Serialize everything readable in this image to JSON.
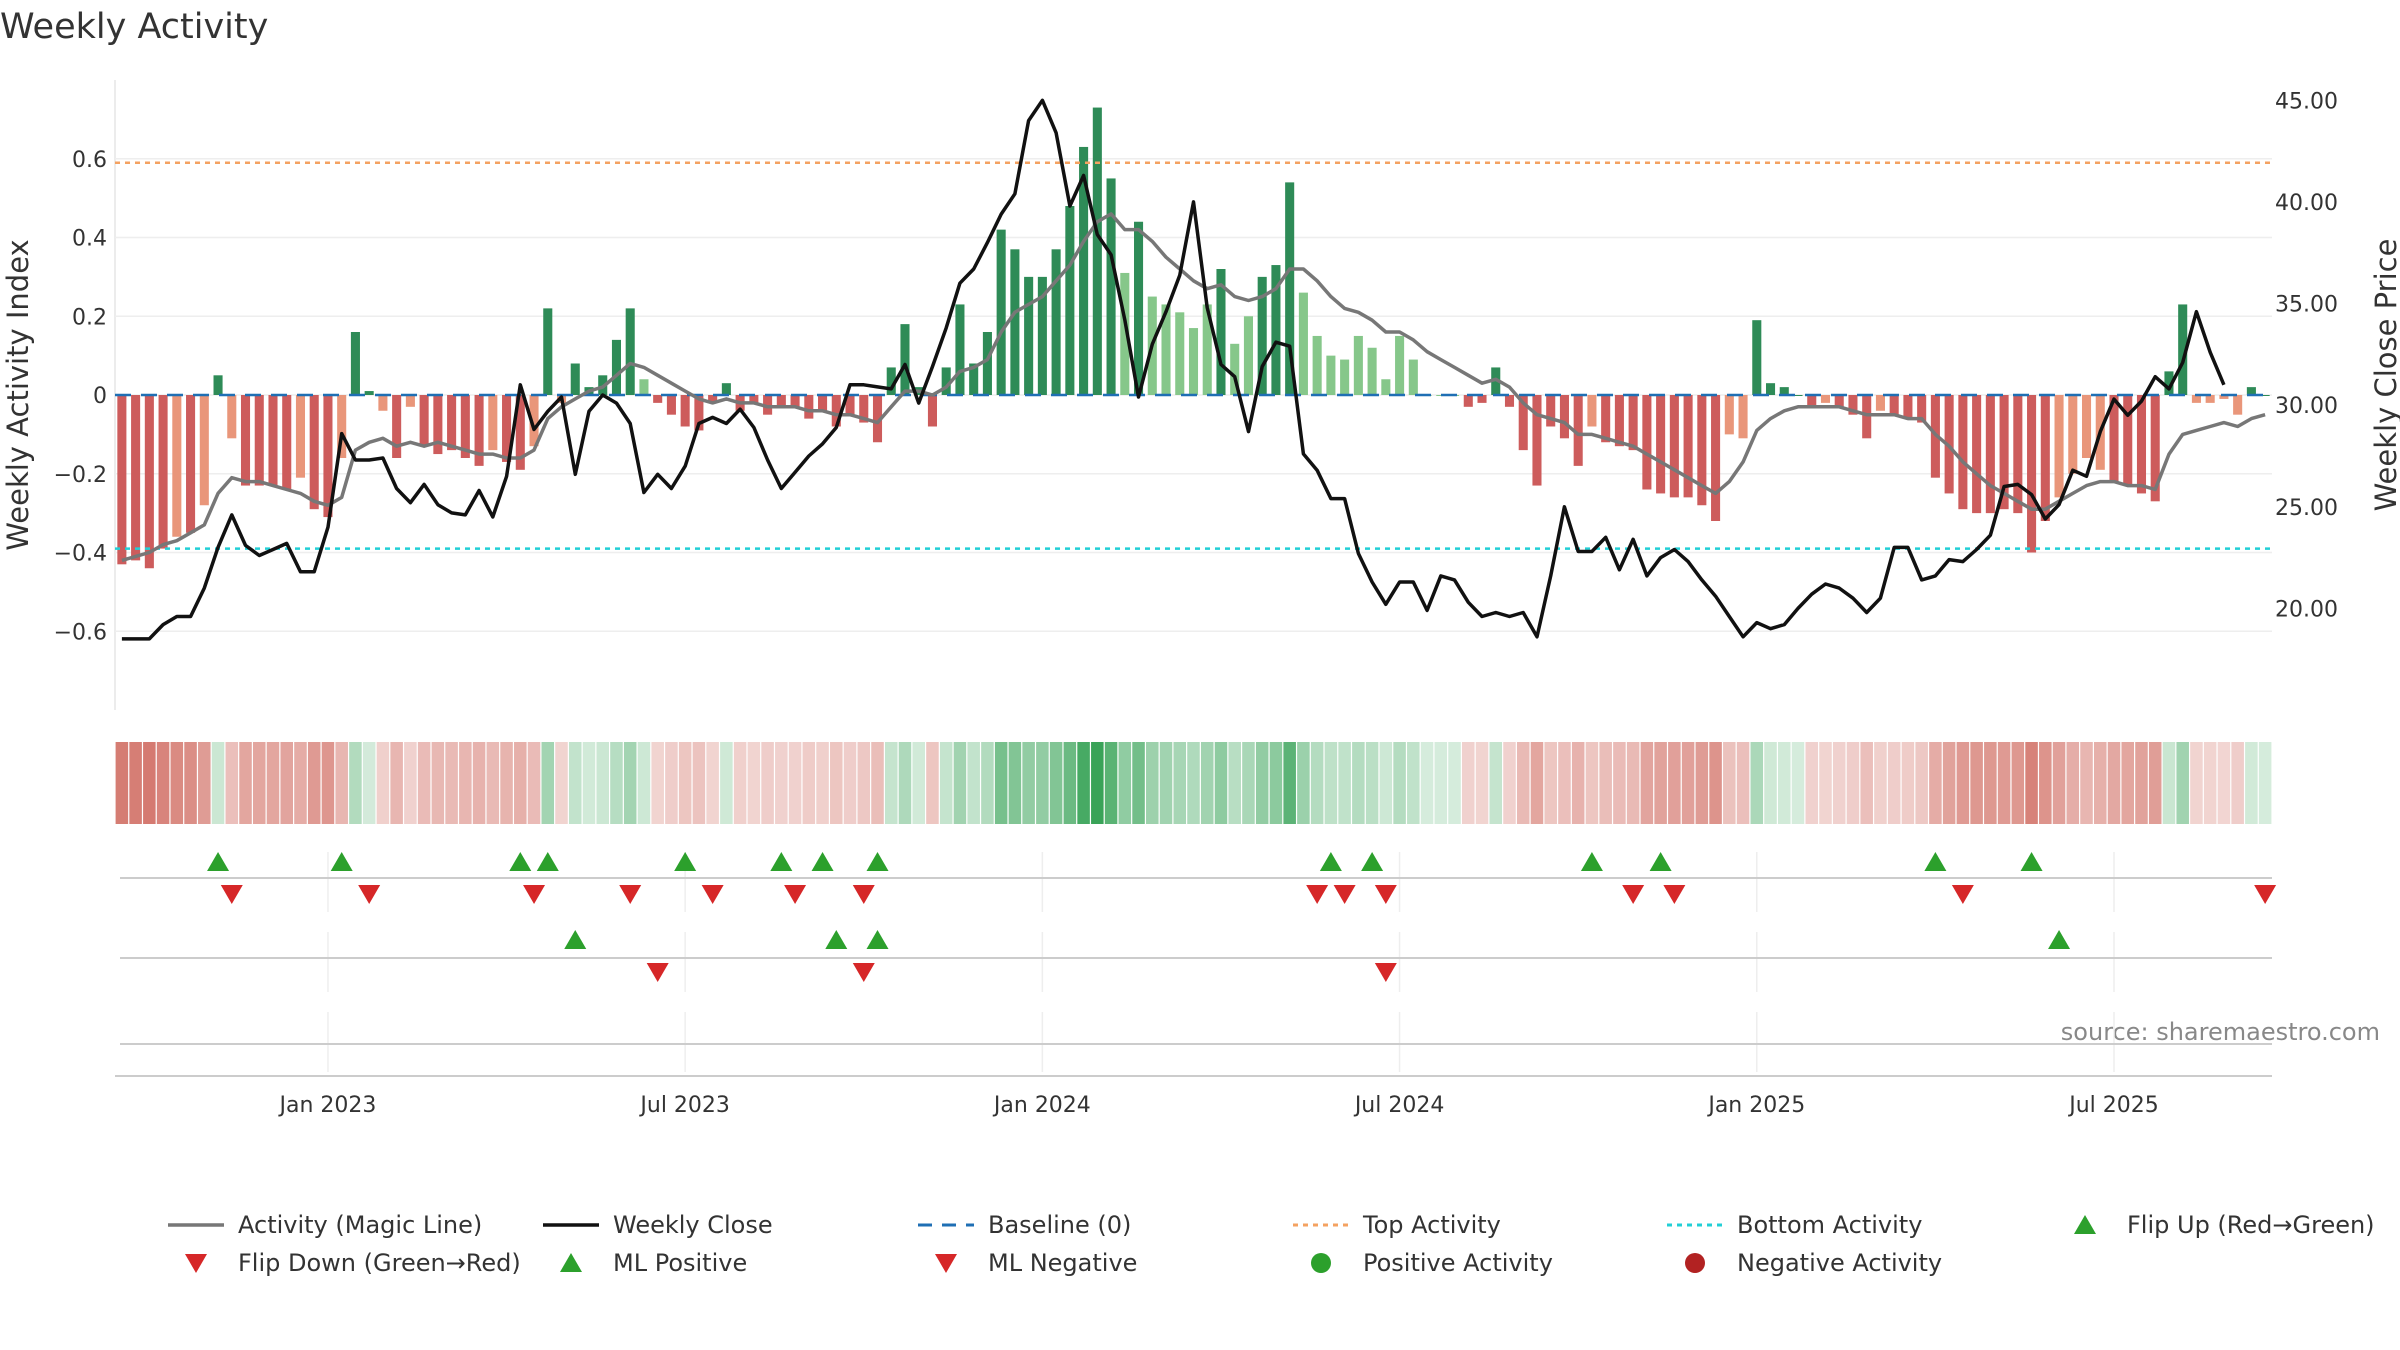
{
  "chart_data": {
    "type": "bar",
    "title": "Weekly Activity",
    "ylabel_left": "Weekly Activity Index",
    "ylabel_right": "Weekly Close Price",
    "source": "source: sharemaestro.com",
    "ylim_left": [
      -0.8,
      0.8
    ],
    "ylim_right": [
      15,
      46
    ],
    "yticks_left": [
      "0.6",
      "0.4",
      "0.2",
      "0",
      "−0.2",
      "−0.4",
      "−0.6"
    ],
    "yticks_left_values": [
      0.6,
      0.4,
      0.2,
      0,
      -0.2,
      -0.4,
      -0.6
    ],
    "yticks_right": [
      "45.00",
      "40.00",
      "35.00",
      "30.00",
      "25.00",
      "20.00"
    ],
    "yticks_right_values": [
      45,
      40,
      35,
      30,
      25,
      20
    ],
    "xlim_weeks": [
      0,
      157
    ],
    "xticks": [
      {
        "label": "Jan 2023",
        "week": 15
      },
      {
        "label": "Jul 2023",
        "week": 41
      },
      {
        "label": "Jan 2024",
        "week": 67
      },
      {
        "label": "Jul 2024",
        "week": 93
      },
      {
        "label": "Jan 2025",
        "week": 119
      },
      {
        "label": "Jul 2025",
        "week": 145
      }
    ],
    "top_activity": 0.59,
    "bottom_activity": -0.39,
    "baseline": 0,
    "activity": [
      -0.43,
      -0.42,
      -0.44,
      -0.39,
      -0.36,
      -0.35,
      -0.28,
      0.05,
      -0.11,
      -0.23,
      -0.23,
      -0.23,
      -0.24,
      -0.21,
      -0.29,
      -0.31,
      -0.16,
      0.16,
      0.01,
      -0.04,
      -0.16,
      -0.03,
      -0.13,
      -0.15,
      -0.14,
      -0.16,
      -0.18,
      -0.14,
      -0.17,
      -0.19,
      -0.13,
      0.22,
      -0.02,
      0.08,
      0.02,
      0.05,
      0.14,
      0.22,
      0.04,
      -0.02,
      -0.05,
      -0.08,
      -0.09,
      -0.02,
      0.03,
      -0.04,
      -0.02,
      -0.05,
      -0.03,
      -0.03,
      -0.06,
      -0.04,
      -0.08,
      -0.05,
      -0.07,
      -0.12,
      0.07,
      0.18,
      0.02,
      -0.08,
      0.07,
      0.23,
      0.08,
      0.16,
      0.42,
      0.37,
      0.3,
      0.3,
      0.37,
      0.48,
      0.63,
      0.73,
      0.55,
      0.31,
      0.44,
      0.25,
      0.23,
      0.21,
      0.17,
      0.23,
      0.32,
      0.13,
      0.2,
      0.3,
      0.33,
      0.54,
      0.26,
      0.15,
      0.1,
      0.09,
      0.15,
      0.12,
      0.04,
      0.15,
      0.09,
      0.0,
      0.0,
      0.0,
      -0.03,
      -0.02,
      0.07,
      -0.03,
      -0.14,
      -0.23,
      -0.08,
      -0.11,
      -0.18,
      -0.08,
      -0.12,
      -0.13,
      -0.14,
      -0.24,
      -0.25,
      -0.26,
      -0.26,
      -0.28,
      -0.32,
      -0.1,
      -0.11,
      0.19,
      0.03,
      0.02,
      0.0,
      -0.03,
      -0.02,
      -0.03,
      -0.05,
      -0.11,
      -0.04,
      -0.05,
      -0.06,
      -0.07,
      -0.21,
      -0.25,
      -0.29,
      -0.3,
      -0.3,
      -0.29,
      -0.3,
      -0.4,
      -0.32,
      -0.26,
      -0.2,
      -0.16,
      -0.19,
      -0.22,
      -0.23,
      -0.25,
      -0.27,
      0.06,
      0.23,
      -0.02,
      -0.02,
      -0.01,
      -0.05,
      0.02,
      0.0
    ],
    "magic_line": [
      -0.42,
      -0.41,
      -0.4,
      -0.38,
      -0.37,
      -0.35,
      -0.33,
      -0.25,
      -0.21,
      -0.22,
      -0.22,
      -0.23,
      -0.24,
      -0.25,
      -0.27,
      -0.28,
      -0.26,
      -0.14,
      -0.12,
      -0.11,
      -0.13,
      -0.12,
      -0.13,
      -0.12,
      -0.13,
      -0.14,
      -0.15,
      -0.15,
      -0.16,
      -0.16,
      -0.14,
      -0.06,
      -0.03,
      -0.01,
      0.01,
      0.02,
      0.05,
      0.08,
      0.07,
      0.05,
      0.03,
      0.01,
      -0.01,
      -0.02,
      -0.01,
      -0.02,
      -0.02,
      -0.03,
      -0.03,
      -0.03,
      -0.04,
      -0.04,
      -0.05,
      -0.05,
      -0.06,
      -0.07,
      -0.03,
      0.01,
      0.01,
      0.0,
      0.02,
      0.06,
      0.07,
      0.09,
      0.16,
      0.21,
      0.23,
      0.25,
      0.29,
      0.33,
      0.39,
      0.44,
      0.46,
      0.42,
      0.42,
      0.39,
      0.35,
      0.32,
      0.29,
      0.27,
      0.28,
      0.25,
      0.24,
      0.25,
      0.27,
      0.32,
      0.32,
      0.29,
      0.25,
      0.22,
      0.21,
      0.19,
      0.16,
      0.16,
      0.14,
      0.11,
      0.09,
      0.07,
      0.05,
      0.03,
      0.04,
      0.02,
      -0.02,
      -0.05,
      -0.06,
      -0.07,
      -0.1,
      -0.1,
      -0.11,
      -0.12,
      -0.13,
      -0.15,
      -0.17,
      -0.19,
      -0.21,
      -0.23,
      -0.25,
      -0.22,
      -0.17,
      -0.09,
      -0.06,
      -0.04,
      -0.03,
      -0.03,
      -0.03,
      -0.03,
      -0.04,
      -0.05,
      -0.05,
      -0.05,
      -0.06,
      -0.06,
      -0.1,
      -0.13,
      -0.17,
      -0.2,
      -0.23,
      -0.25,
      -0.27,
      -0.29,
      -0.29,
      -0.27,
      -0.25,
      -0.23,
      -0.22,
      -0.22,
      -0.23,
      -0.23,
      -0.24,
      -0.15,
      -0.1,
      -0.09,
      -0.08,
      -0.07,
      -0.08,
      -0.06,
      -0.05
    ],
    "weekly_close": [
      18.5,
      18.5,
      18.5,
      19.2,
      19.6,
      19.6,
      21.0,
      23.0,
      24.6,
      23.1,
      22.6,
      22.9,
      23.2,
      21.8,
      21.8,
      24.0,
      28.6,
      27.3,
      27.3,
      27.4,
      25.9,
      25.2,
      26.1,
      25.1,
      24.7,
      24.6,
      25.8,
      24.5,
      26.5,
      31.0,
      28.8,
      29.7,
      30.4,
      26.6,
      29.7,
      30.5,
      30.1,
      29.1,
      25.7,
      26.6,
      25.9,
      27.0,
      29.1,
      29.4,
      29.1,
      29.8,
      28.9,
      27.3,
      25.9,
      26.7,
      27.5,
      28.1,
      28.9,
      31.0,
      31.0,
      30.9,
      30.8,
      32.0,
      30.1,
      31.9,
      33.8,
      36.0,
      36.7,
      38.0,
      39.4,
      40.4,
      44.0,
      45.0,
      43.4,
      39.8,
      41.3,
      38.4,
      37.4,
      34.2,
      30.4,
      33.0,
      34.6,
      36.4,
      40.0,
      34.8,
      32.0,
      31.4,
      28.7,
      31.9,
      33.1,
      32.9,
      27.6,
      26.8,
      25.4,
      25.4,
      22.7,
      21.3,
      20.2,
      21.3,
      21.3,
      19.9,
      21.6,
      21.4,
      20.3,
      19.6,
      19.8,
      19.6,
      19.8,
      18.6,
      21.6,
      25.0,
      22.8,
      22.8,
      23.5,
      21.9,
      23.4,
      21.6,
      22.5,
      22.9,
      22.3,
      21.4,
      20.6,
      19.6,
      18.6,
      19.3,
      19.0,
      19.2,
      20.0,
      20.7,
      21.2,
      21.0,
      20.5,
      19.8,
      20.5,
      23.0,
      23.0,
      21.4,
      21.6,
      22.4,
      22.3,
      22.9,
      23.6,
      26.0,
      26.1,
      25.6,
      24.4,
      25.1,
      26.8,
      26.5,
      28.7,
      30.3,
      29.5,
      30.2,
      31.4,
      30.8,
      32.1,
      34.6,
      32.6,
      31.0
    ],
    "flip_up_weeks": [
      7,
      16,
      29,
      31,
      41,
      48,
      51,
      55,
      88,
      91,
      107,
      112,
      132,
      139
    ],
    "flip_down_weeks": [
      8,
      18,
      30,
      37,
      43,
      49,
      54,
      87,
      89,
      92,
      110,
      113,
      134,
      156
    ],
    "ml_positive_weeks": [
      33,
      52,
      55,
      141
    ],
    "ml_negative_weeks": [
      39,
      54,
      92
    ],
    "legend": [
      {
        "label": "Activity (Magic Line)",
        "kind": "line",
        "color": "#777777"
      },
      {
        "label": "Weekly Close",
        "kind": "line",
        "color": "#111111"
      },
      {
        "label": "Baseline (0)",
        "kind": "dash",
        "color": "#1f6fb4"
      },
      {
        "label": "Top Activity",
        "kind": "dot",
        "color": "#f4a261"
      },
      {
        "label": "Bottom Activity",
        "kind": "dot",
        "color": "#22cfd6"
      },
      {
        "label": "Flip Up (Red→Green)",
        "kind": "tri-up",
        "color": "#2ca02c"
      },
      {
        "label": "Flip Down (Green→Red)",
        "kind": "tri-down",
        "color": "#d62728"
      },
      {
        "label": "ML Positive",
        "kind": "tri-up",
        "color": "#2ca02c"
      },
      {
        "label": "ML Negative",
        "kind": "tri-down",
        "color": "#d62728"
      },
      {
        "label": "Positive Activity",
        "kind": "circle",
        "color": "#2ca02c"
      },
      {
        "label": "Negative Activity",
        "kind": "circle",
        "color": "#b22222"
      }
    ],
    "colors": {
      "pos_strong": "#2e8b57",
      "pos_weak": "#86c78a",
      "neg_strong": "#cd5c5c",
      "neg_weak": "#e9967a",
      "magic": "#777777",
      "close": "#111111",
      "baseline": "#1f6fb4",
      "top": "#f4a261",
      "bottom": "#22cfd6"
    }
  }
}
